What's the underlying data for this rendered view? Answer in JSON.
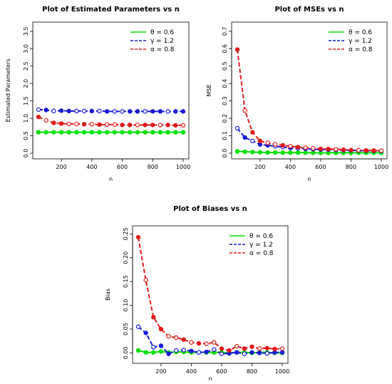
{
  "chart_data": [
    {
      "type": "line",
      "title": "Plot of Estimated Parameters vs n",
      "xlabel": "n",
      "ylabel": "Estimated Parameters",
      "xlim": [
        50,
        1000
      ],
      "ylim": [
        0,
        3.6
      ],
      "xticks": [
        200,
        400,
        600,
        800,
        1000
      ],
      "yticks": [
        "0.0",
        "0.5",
        "1.0",
        "1.5",
        "2.0",
        "2.5",
        "3.0",
        "3.5"
      ],
      "ytick_values": [
        0,
        0.5,
        1.0,
        1.5,
        2.0,
        2.5,
        3.0,
        3.5
      ],
      "legend": "top-right",
      "x": [
        50,
        100,
        150,
        200,
        250,
        300,
        350,
        400,
        450,
        500,
        550,
        600,
        650,
        700,
        750,
        800,
        850,
        900,
        950,
        1000
      ],
      "series": [
        {
          "name": "θ = 0.6",
          "color": "#00e000",
          "dash": "solid",
          "values": [
            0.6,
            0.6,
            0.6,
            0.6,
            0.6,
            0.6,
            0.6,
            0.6,
            0.6,
            0.6,
            0.6,
            0.6,
            0.6,
            0.6,
            0.6,
            0.6,
            0.6,
            0.6,
            0.6,
            0.6
          ]
        },
        {
          "name": "γ = 1.2",
          "color": "#1a1ad6",
          "dash": "dashed",
          "values": [
            1.25,
            1.24,
            1.21,
            1.22,
            1.21,
            1.21,
            1.21,
            1.21,
            1.21,
            1.2,
            1.2,
            1.2,
            1.2,
            1.2,
            1.2,
            1.2,
            1.2,
            1.2,
            1.2,
            1.2
          ]
        },
        {
          "name": "α = 0.8",
          "color": "#e01b1b",
          "dash": "dashed",
          "values": [
            1.04,
            0.94,
            0.87,
            0.85,
            0.84,
            0.84,
            0.83,
            0.83,
            0.82,
            0.82,
            0.82,
            0.81,
            0.81,
            0.81,
            0.81,
            0.81,
            0.81,
            0.81,
            0.8,
            0.8
          ]
        }
      ]
    },
    {
      "type": "line",
      "title": "Plot of MSEs vs n",
      "xlabel": "n",
      "ylabel": "MSE",
      "xlim": [
        50,
        1000
      ],
      "ylim": [
        0,
        0.72
      ],
      "xticks": [
        200,
        400,
        600,
        800,
        1000
      ],
      "yticks": [
        "0.0",
        "0.1",
        "0.2",
        "0.3",
        "0.4",
        "0.5",
        "0.6",
        "0.7"
      ],
      "ytick_values": [
        0,
        0.1,
        0.2,
        0.3,
        0.4,
        0.5,
        0.6,
        0.7
      ],
      "legend": "top-right",
      "x": [
        50,
        100,
        150,
        200,
        250,
        300,
        350,
        400,
        450,
        500,
        550,
        600,
        650,
        700,
        750,
        800,
        850,
        900,
        950,
        1000
      ],
      "series": [
        {
          "name": "θ = 0.6",
          "color": "#00e000",
          "dash": "solid",
          "values": [
            0.01,
            0.008,
            0.006,
            0.005,
            0.004,
            0.004,
            0.003,
            0.003,
            0.003,
            0.003,
            0.002,
            0.002,
            0.002,
            0.002,
            0.002,
            0.002,
            0.002,
            0.002,
            0.002,
            0.002
          ]
        },
        {
          "name": "γ = 1.2",
          "color": "#1a1ad6",
          "dash": "dashed",
          "values": [
            0.143,
            0.09,
            0.07,
            0.05,
            0.045,
            0.04,
            0.035,
            0.03,
            0.028,
            0.025,
            0.023,
            0.021,
            0.02,
            0.018,
            0.017,
            0.016,
            0.015,
            0.014,
            0.013,
            0.012
          ]
        },
        {
          "name": "α = 0.8",
          "color": "#e01b1b",
          "dash": "dashed",
          "values": [
            0.595,
            0.245,
            0.12,
            0.07,
            0.06,
            0.05,
            0.045,
            0.04,
            0.035,
            0.032,
            0.028,
            0.025,
            0.024,
            0.022,
            0.02,
            0.018,
            0.017,
            0.016,
            0.015,
            0.014
          ]
        }
      ]
    },
    {
      "type": "line",
      "title": "Plot of Biases vs n",
      "xlabel": "n",
      "ylabel": "Bias",
      "xlim": [
        50,
        1000
      ],
      "ylim": [
        -0.01,
        0.255
      ],
      "xticks": [
        200,
        400,
        600,
        800,
        1000
      ],
      "yticks": [
        "0.00",
        "0.05",
        "0.10",
        "0.15",
        "0.20",
        "0.25"
      ],
      "ytick_values": [
        0,
        0.05,
        0.1,
        0.15,
        0.2,
        0.25
      ],
      "legend": "top-right",
      "x": [
        50,
        100,
        150,
        200,
        250,
        300,
        350,
        400,
        450,
        500,
        550,
        600,
        650,
        700,
        750,
        800,
        850,
        900,
        950,
        1000
      ],
      "series": [
        {
          "name": "θ = 0.6",
          "color": "#00e000",
          "dash": "solid",
          "values": [
            0.005,
            0.001,
            0.001,
            0.003,
            0.001,
            0.002,
            0.002,
            0.001,
            0.001,
            0.001,
            0.001,
            0.001,
            0.0,
            0.001,
            0.001,
            0.0,
            0.001,
            0.001,
            0.0,
            0.0
          ]
        },
        {
          "name": "γ = 1.2",
          "color": "#1a1ad6",
          "dash": "dashed",
          "values": [
            0.055,
            0.042,
            0.012,
            0.015,
            -0.002,
            0.005,
            0.006,
            0.004,
            0.001,
            0.002,
            0.007,
            -0.002,
            -0.001,
            0.001,
            -0.002,
            0.001,
            0.0,
            -0.001,
            0.001,
            0.001
          ]
        },
        {
          "name": "α = 0.8",
          "color": "#e01b1b",
          "dash": "dashed",
          "values": [
            0.243,
            0.153,
            0.075,
            0.05,
            0.035,
            0.032,
            0.028,
            0.022,
            0.02,
            0.019,
            0.022,
            0.009,
            0.005,
            0.014,
            0.009,
            0.013,
            0.009,
            0.01,
            0.008,
            0.009
          ]
        }
      ]
    }
  ]
}
